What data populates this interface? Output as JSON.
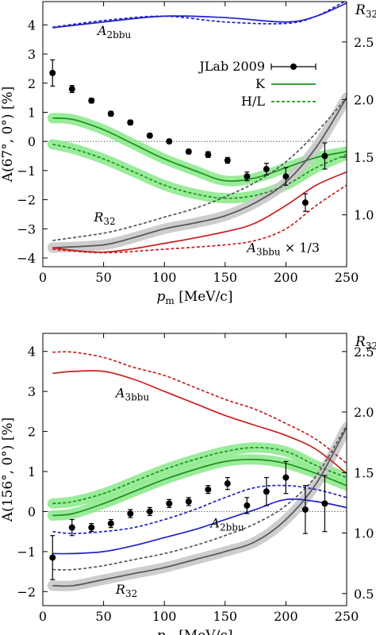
{
  "chart_data": [
    {
      "type": "line",
      "xlabel": "p_m [MeV/c]",
      "ylabel": "A(67°, 0°) [%]",
      "y2label": "R32",
      "xlim": [
        0,
        250
      ],
      "ylim": [
        -4.3,
        4.8
      ],
      "y2lim": [
        0.55,
        2.85
      ],
      "x_ticks": [
        0,
        50,
        100,
        150,
        200,
        250
      ],
      "y_ticks": [
        -4,
        -3,
        -2,
        -1,
        0,
        1,
        2,
        3,
        4
      ],
      "y2_ticks": [
        1.0,
        1.5,
        2.0,
        2.5
      ],
      "legend": {
        "position": "top-center",
        "entries": [
          {
            "label": "JLab 2009",
            "style": "points"
          },
          {
            "label": "K",
            "style": "solid-green"
          },
          {
            "label": "H/L",
            "style": "dashed-green"
          }
        ]
      },
      "annotations": [
        {
          "text": "A2bbu",
          "x": 45,
          "y": 3.65
        },
        {
          "text": "R32",
          "x": 42,
          "y": -2.75
        },
        {
          "text": "A3bbu × 1/3",
          "x": 168,
          "y": -3.8
        }
      ],
      "points": {
        "name": "JLab 2009",
        "x": [
          8,
          24,
          40,
          56,
          72,
          88,
          104,
          120,
          136,
          152,
          168,
          184,
          200,
          216,
          232
        ],
        "y": [
          2.35,
          1.8,
          1.4,
          0.95,
          0.65,
          0.2,
          0.0,
          -0.35,
          -0.45,
          -0.65,
          -1.2,
          -0.95,
          -1.2,
          -2.1,
          -0.5
        ],
        "err": [
          0.45,
          0.12,
          0.08,
          0.08,
          0.08,
          0.07,
          0.07,
          0.08,
          0.1,
          0.1,
          0.15,
          0.2,
          0.3,
          0.3,
          0.45
        ]
      },
      "series": [
        {
          "name": "A2bbu K",
          "color": "#2020c8",
          "dash": false,
          "band": false,
          "x": [
            8,
            50,
            100,
            150,
            200,
            225,
            250
          ],
          "y": [
            3.9,
            4.1,
            4.3,
            4.25,
            4.1,
            4.3,
            4.75
          ]
        },
        {
          "name": "A2bbu H/L",
          "color": "#2020c8",
          "dash": true,
          "band": false,
          "x": [
            8,
            50,
            100,
            150,
            200,
            225,
            250
          ],
          "y": [
            3.92,
            4.15,
            4.3,
            4.1,
            4.05,
            4.3,
            4.85
          ]
        },
        {
          "name": "K",
          "color": "#1f8f1f",
          "dash": false,
          "band": true,
          "x": [
            8,
            25,
            50,
            75,
            100,
            125,
            150,
            175,
            200,
            225,
            250
          ],
          "y": [
            0.8,
            0.75,
            0.4,
            -0.1,
            -0.6,
            -1.0,
            -1.35,
            -1.25,
            -0.9,
            -0.55,
            -0.35
          ]
        },
        {
          "name": "H/L",
          "color": "#1f8f1f",
          "dash": true,
          "band": true,
          "x": [
            8,
            25,
            50,
            75,
            100,
            125,
            150,
            175,
            200,
            225,
            250
          ],
          "y": [
            -0.1,
            -0.25,
            -0.6,
            -1.05,
            -1.5,
            -1.8,
            -1.95,
            -1.85,
            -1.5,
            -0.9,
            -0.45
          ]
        },
        {
          "name": "R32 K",
          "color": "#555555",
          "dash": false,
          "band": true,
          "x": [
            8,
            50,
            75,
            100,
            125,
            150,
            175,
            200,
            225,
            250
          ],
          "y": [
            -3.65,
            -3.55,
            -3.3,
            -3.0,
            -2.8,
            -2.55,
            -2.1,
            -1.4,
            -0.2,
            1.5
          ]
        },
        {
          "name": "R32 H/L",
          "color": "#555555",
          "dash": true,
          "band": false,
          "x": [
            8,
            50,
            75,
            100,
            125,
            150,
            175,
            200,
            225,
            250
          ],
          "y": [
            -3.4,
            -3.15,
            -2.9,
            -2.6,
            -2.3,
            -1.9,
            -1.4,
            -0.7,
            0.3,
            1.5
          ]
        },
        {
          "name": "A3bbu K",
          "color": "#c82020",
          "dash": false,
          "band": false,
          "x": [
            8,
            50,
            100,
            150,
            175,
            200,
            225,
            250
          ],
          "y": [
            -3.65,
            -3.8,
            -3.5,
            -3.1,
            -2.8,
            -2.2,
            -1.5,
            -1.05
          ]
        },
        {
          "name": "A3bbu H/L",
          "color": "#c82020",
          "dash": true,
          "band": false,
          "x": [
            8,
            50,
            100,
            150,
            175,
            200,
            225,
            250
          ],
          "y": [
            -3.7,
            -3.82,
            -3.7,
            -3.55,
            -3.4,
            -3.0,
            -2.2,
            -1.5
          ]
        }
      ]
    },
    {
      "type": "line",
      "xlabel": "p_m [MeV/c]",
      "ylabel": "A(156°, 0°) [%]",
      "y2label": "R32",
      "xlim": [
        0,
        250
      ],
      "ylim": [
        -2.35,
        4.45
      ],
      "y2lim": [
        0.4,
        2.65
      ],
      "x_ticks": [
        0,
        50,
        100,
        150,
        200,
        250
      ],
      "y_ticks": [
        -2,
        -1,
        0,
        1,
        2,
        3,
        4
      ],
      "y2_ticks": [
        0.5,
        1.0,
        1.5,
        2.0,
        2.5
      ],
      "annotations": [
        {
          "text": "A3bbu",
          "x": 60,
          "y": 2.85
        },
        {
          "text": "A2bbu",
          "x": 138,
          "y": -0.4
        },
        {
          "text": "R32",
          "x": 60,
          "y": -2.05
        }
      ],
      "points": {
        "name": "JLab 2009",
        "x": [
          8,
          24,
          40,
          56,
          72,
          88,
          104,
          120,
          136,
          152,
          168,
          184,
          200,
          216,
          232
        ],
        "y": [
          -1.15,
          -0.4,
          -0.4,
          -0.3,
          -0.05,
          0.0,
          0.2,
          0.25,
          0.55,
          0.7,
          0.15,
          0.5,
          0.85,
          0.05,
          0.2
        ],
        "err": [
          0.55,
          0.2,
          0.1,
          0.1,
          0.1,
          0.1,
          0.1,
          0.1,
          0.1,
          0.15,
          0.2,
          0.35,
          0.4,
          0.6,
          0.7
        ]
      },
      "series": [
        {
          "name": "A3bbu K",
          "color": "#c82020",
          "dash": false,
          "band": false,
          "x": [
            8,
            25,
            50,
            75,
            100,
            125,
            150,
            175,
            200,
            225,
            250
          ],
          "y": [
            3.45,
            3.5,
            3.5,
            3.3,
            3.0,
            2.7,
            2.4,
            2.15,
            1.9,
            1.55,
            0.95
          ]
        },
        {
          "name": "A3bbu H/L",
          "color": "#c82020",
          "dash": true,
          "band": false,
          "x": [
            8,
            25,
            50,
            75,
            100,
            125,
            150,
            175,
            200,
            225,
            250
          ],
          "y": [
            3.98,
            3.98,
            3.85,
            3.6,
            3.4,
            3.1,
            2.8,
            2.55,
            2.2,
            1.8,
            1.2
          ]
        },
        {
          "name": "K",
          "color": "#1f8f1f",
          "dash": false,
          "band": true,
          "x": [
            8,
            25,
            50,
            75,
            100,
            125,
            150,
            175,
            200,
            225,
            250
          ],
          "y": [
            -0.1,
            -0.05,
            0.2,
            0.5,
            0.8,
            1.05,
            1.25,
            1.3,
            1.2,
            0.95,
            0.65
          ]
        },
        {
          "name": "H/L",
          "color": "#1f8f1f",
          "dash": true,
          "band": true,
          "x": [
            8,
            25,
            50,
            75,
            100,
            125,
            150,
            175,
            200,
            225,
            250
          ],
          "y": [
            0.2,
            0.25,
            0.45,
            0.75,
            1.05,
            1.3,
            1.5,
            1.6,
            1.5,
            1.15,
            0.85
          ]
        },
        {
          "name": "A2bbu K",
          "color": "#2020c8",
          "dash": false,
          "band": false,
          "x": [
            8,
            25,
            50,
            75,
            100,
            125,
            150,
            175,
            200,
            225,
            250
          ],
          "y": [
            -1.05,
            -1.05,
            -1.0,
            -0.85,
            -0.65,
            -0.45,
            -0.2,
            0.05,
            0.3,
            0.25,
            0.1
          ]
        },
        {
          "name": "A2bbu H/L",
          "color": "#2020c8",
          "dash": true,
          "band": false,
          "x": [
            8,
            25,
            50,
            75,
            100,
            125,
            150,
            175,
            200,
            225,
            250
          ],
          "y": [
            -0.5,
            -0.55,
            -0.5,
            -0.4,
            -0.2,
            0.05,
            0.35,
            0.6,
            0.65,
            0.55,
            0.35
          ]
        },
        {
          "name": "R32 K",
          "color": "#555555",
          "dash": false,
          "band": true,
          "x": [
            8,
            25,
            50,
            75,
            100,
            125,
            150,
            175,
            200,
            225,
            250
          ],
          "y": [
            -1.85,
            -1.85,
            -1.7,
            -1.55,
            -1.4,
            -1.2,
            -1.0,
            -0.75,
            -0.2,
            0.7,
            2.1
          ]
        },
        {
          "name": "R32 H/L",
          "color": "#555555",
          "dash": true,
          "band": false,
          "x": [
            8,
            25,
            50,
            75,
            100,
            125,
            150,
            175,
            200,
            225,
            250
          ],
          "y": [
            -1.45,
            -1.45,
            -1.35,
            -1.2,
            -1.05,
            -0.85,
            -0.6,
            -0.3,
            0.15,
            0.9,
            2.15
          ]
        }
      ]
    }
  ]
}
